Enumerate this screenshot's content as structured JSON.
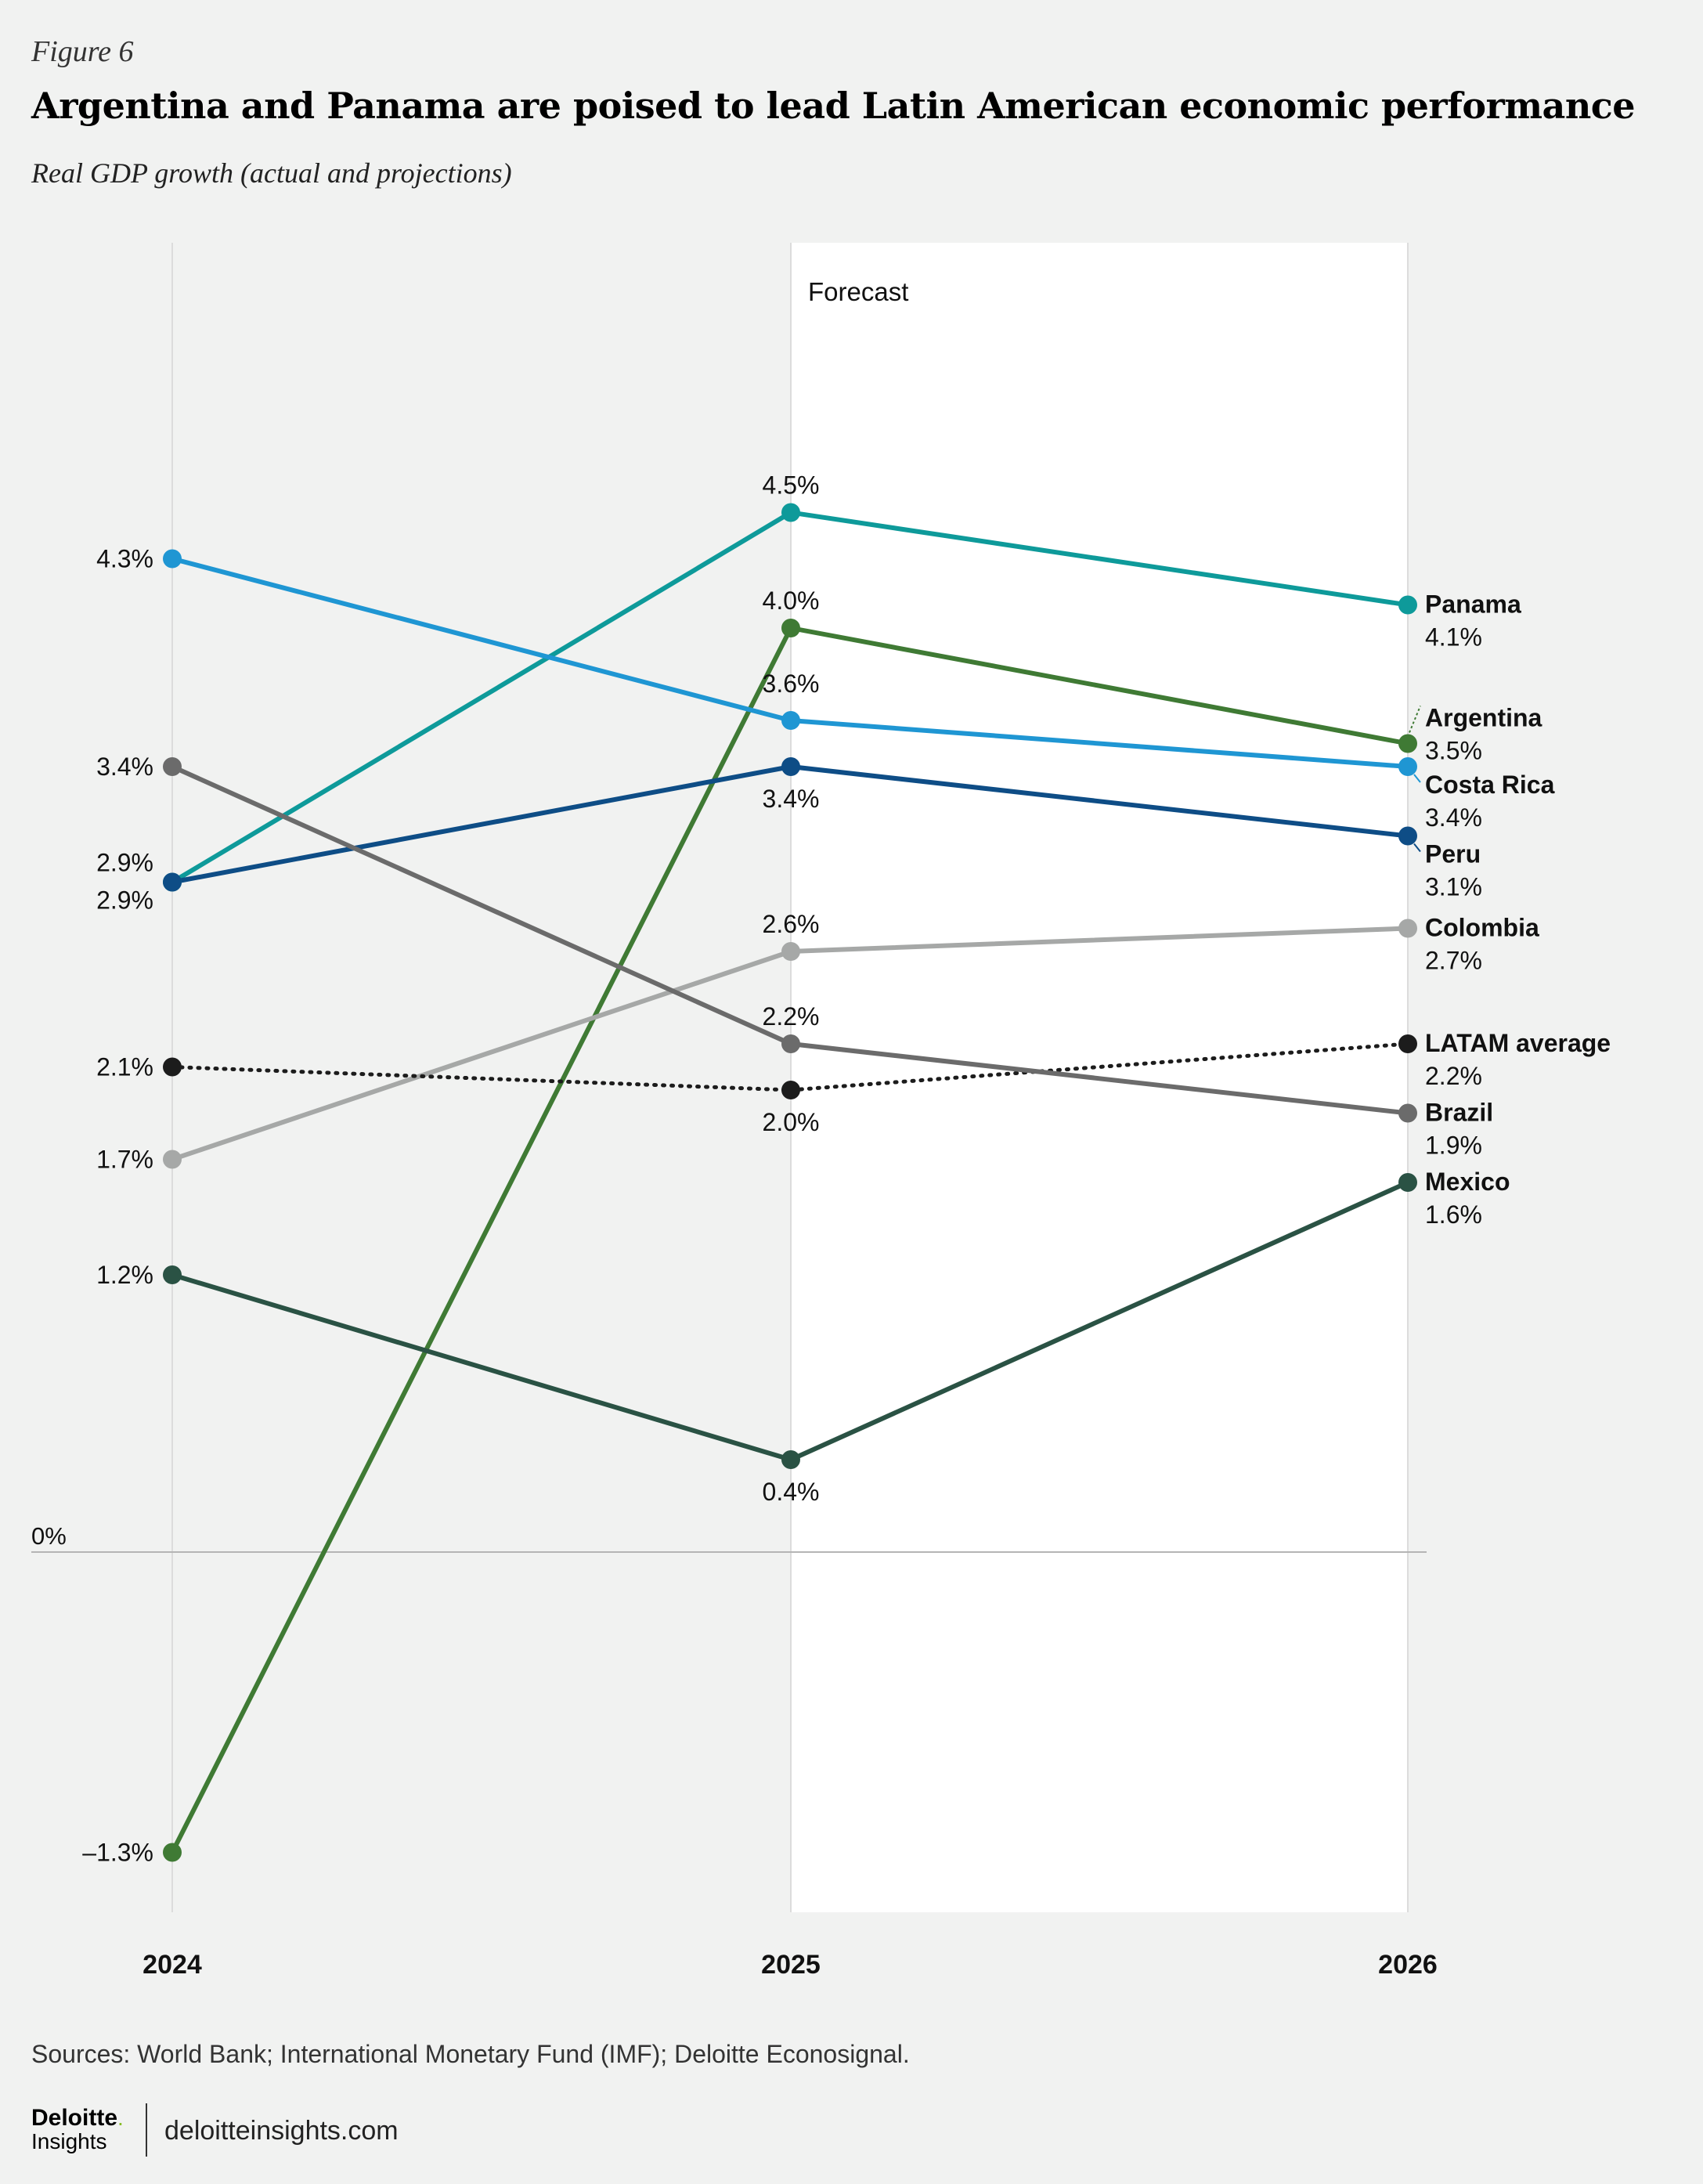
{
  "figure_label": "Figure 6",
  "footer": {
    "sources": "Sources: World Bank; International Monetary Fund (IMF); Deloitte Econosignal.",
    "logo_brand": "Deloitte",
    "logo_sub": "Insights",
    "site": "deloitteinsights.com"
  },
  "chart_data": {
    "type": "line",
    "title": "Argentina and Panama are poised to lead Latin American economic performance",
    "subtitle": "Real GDP growth (actual and projections)",
    "categories": [
      "2024",
      "2025",
      "2026"
    ],
    "forecast_label": "Forecast",
    "zero_label": "0%",
    "ylim": [
      -1.3,
      4.5
    ],
    "series": [
      {
        "name": "Panama",
        "values": [
          2.9,
          4.5,
          4.1
        ],
        "labels": [
          "",
          "4.5%",
          "4.1%"
        ],
        "color": "#0e9a9a"
      },
      {
        "name": "Argentina",
        "values": [
          -1.3,
          4.0,
          3.5
        ],
        "labels": [
          "–1.3%",
          "4.0%",
          "3.5%"
        ],
        "color": "#3f7a34"
      },
      {
        "name": "Costa Rica",
        "values": [
          4.3,
          3.6,
          3.4
        ],
        "labels": [
          "4.3%",
          "3.6%",
          "3.4%"
        ],
        "color": "#1f96d3"
      },
      {
        "name": "Peru",
        "values": [
          2.9,
          3.4,
          3.1
        ],
        "labels": [
          "2.9%",
          "3.4%",
          "3.1%"
        ],
        "color": "#0e4d86"
      },
      {
        "name": "Colombia",
        "values": [
          1.7,
          2.6,
          2.7
        ],
        "labels": [
          "1.7%",
          "2.6%",
          "2.7%"
        ],
        "color": "#a6a8a7"
      },
      {
        "name": "LATAM average",
        "values": [
          2.1,
          2.0,
          2.2
        ],
        "labels": [
          "2.1%",
          "2.0%",
          "2.2%"
        ],
        "color": "#1c1c1c",
        "dotted": true
      },
      {
        "name": "Brazil",
        "values": [
          3.4,
          2.2,
          1.9
        ],
        "labels": [
          "3.4%",
          "2.2%",
          "1.9%"
        ],
        "color": "#6b6b6b"
      },
      {
        "name": "Mexico",
        "values": [
          1.2,
          0.4,
          1.6
        ],
        "labels": [
          "1.2%",
          "0.4%",
          "1.6%"
        ],
        "color": "#2a5244"
      }
    ]
  }
}
